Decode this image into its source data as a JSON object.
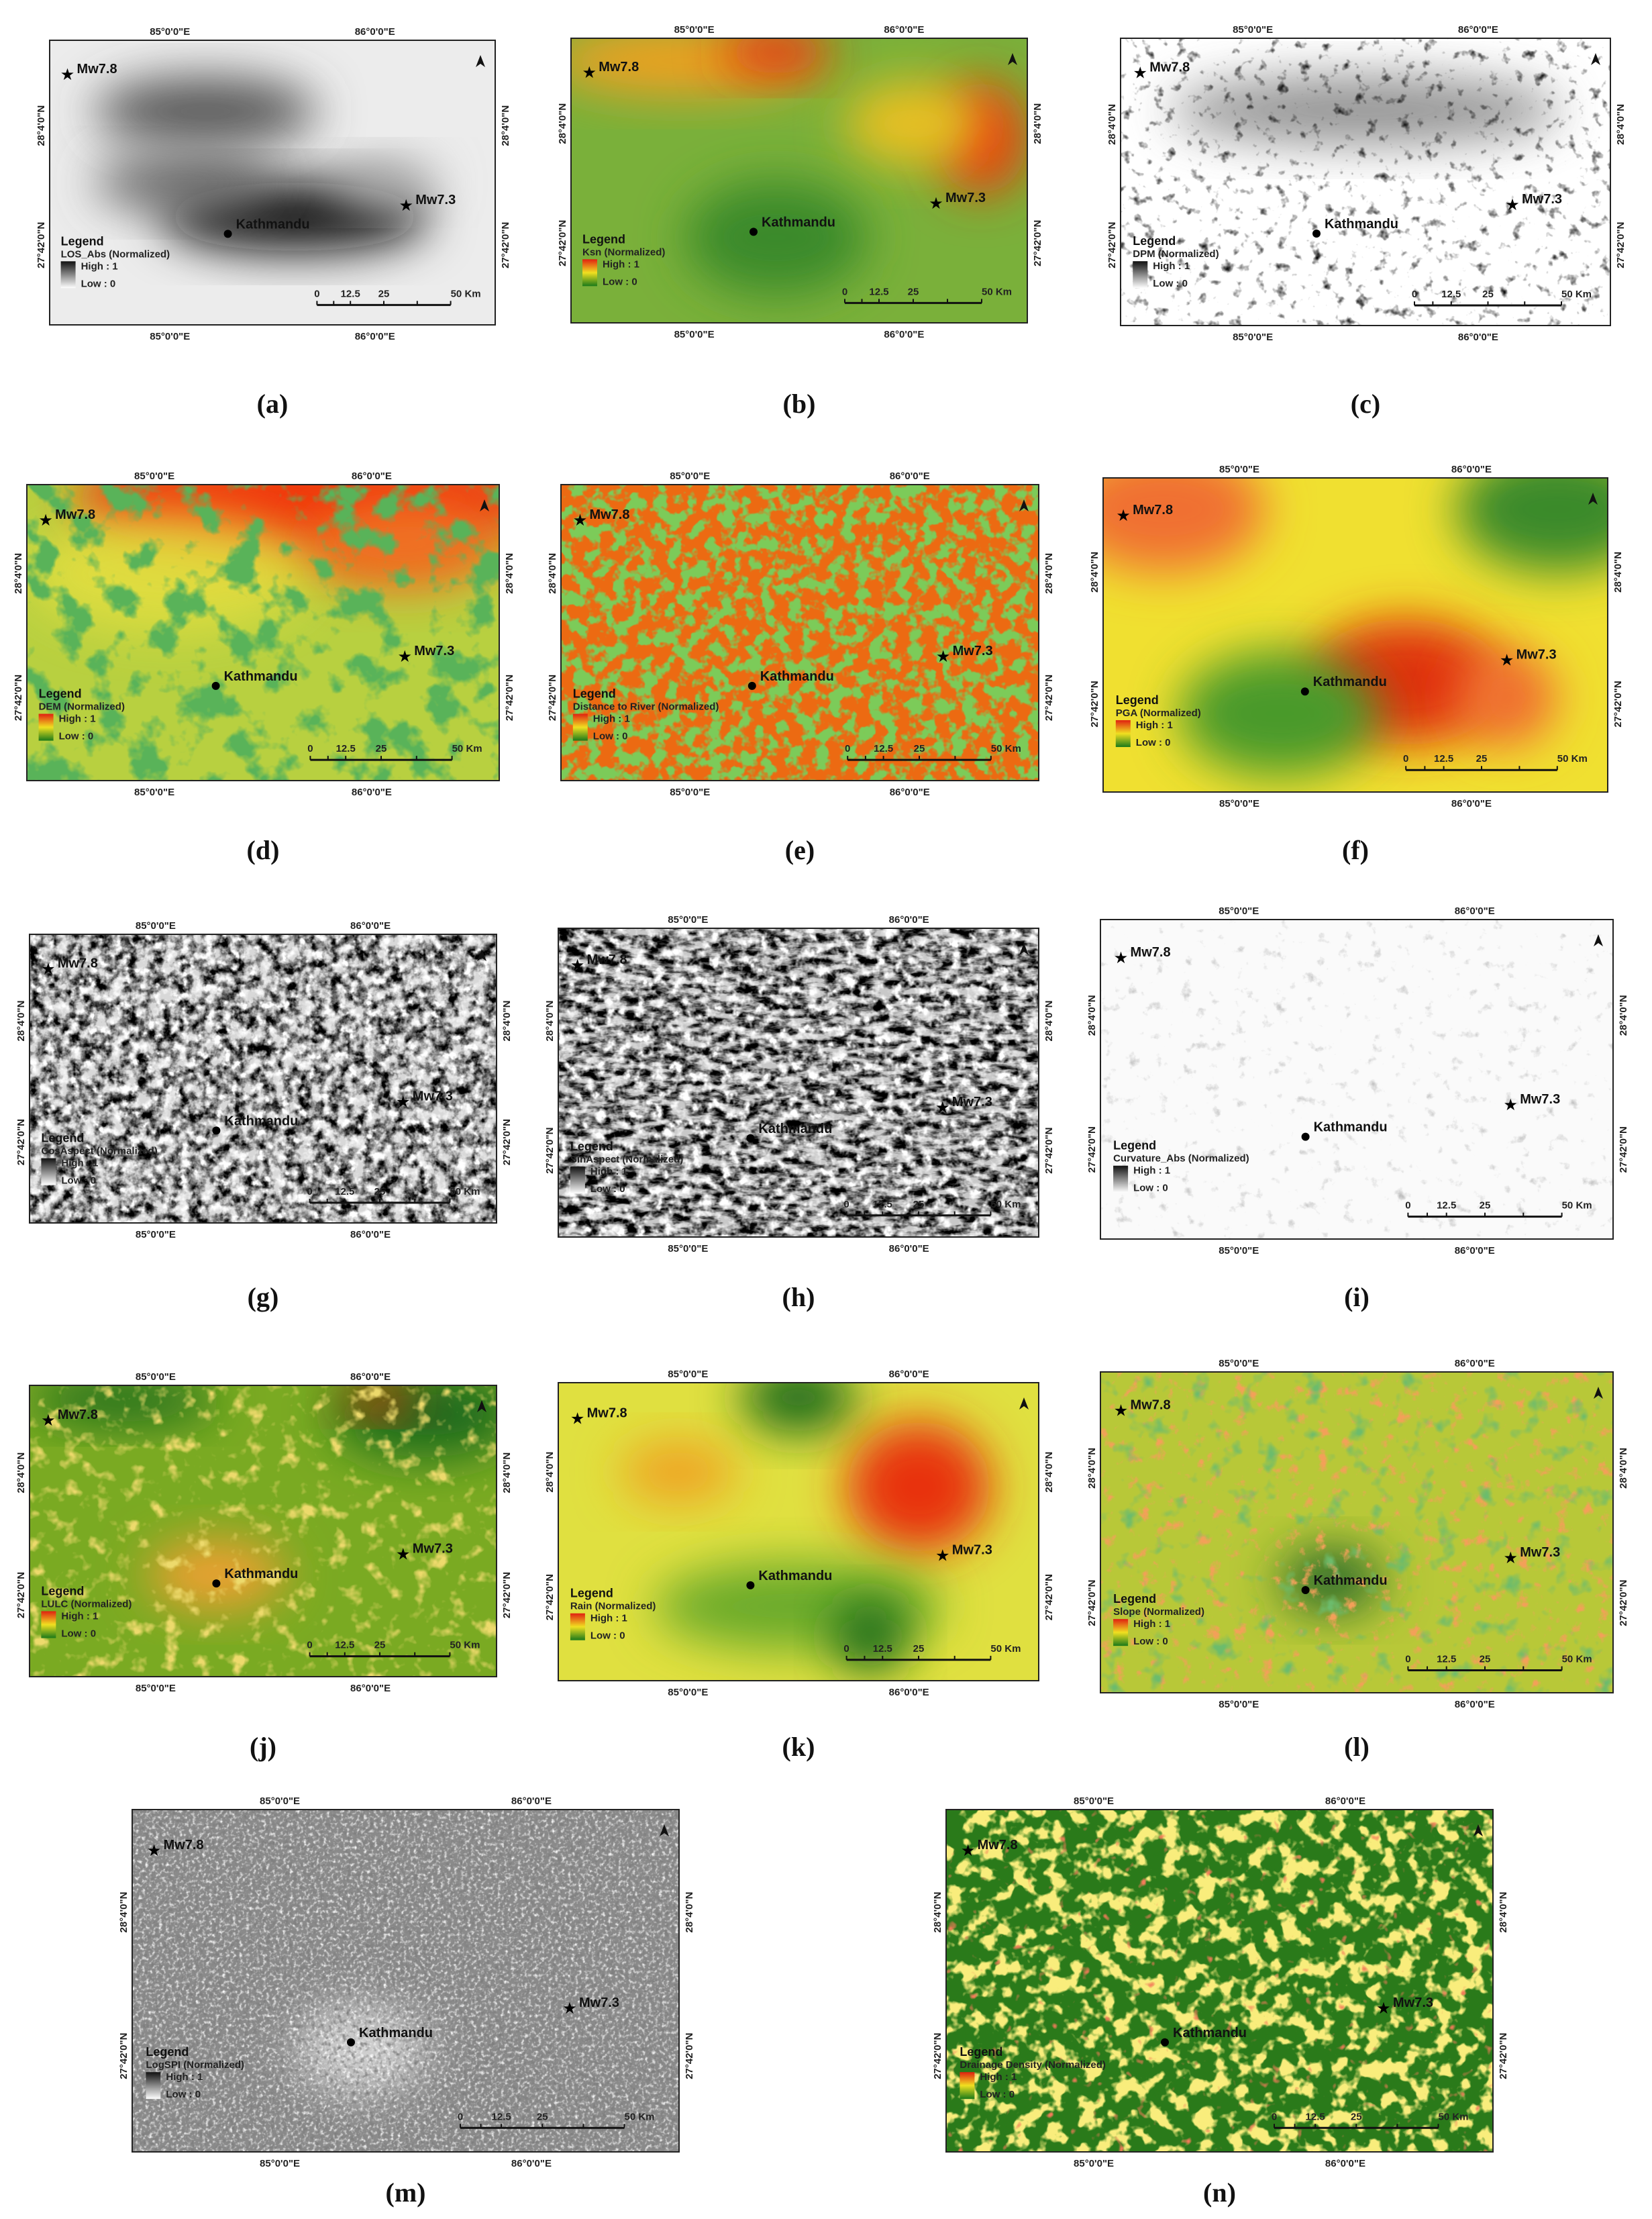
{
  "map_labels": {
    "longitude": [
      "85°0'0\"E",
      "86°0'0\"E"
    ],
    "latitude": [
      "28°4'0\"N",
      "27°42'0\"N"
    ],
    "events": [
      "Mw7.8",
      "Mw7.3"
    ],
    "city": "Kathmandu",
    "legend": "Legend",
    "high": "High : 1",
    "low": "Low : 0",
    "scale": [
      "0",
      "12.5",
      "25",
      "50 Km"
    ]
  },
  "panels": [
    {
      "label": "(a)",
      "layer": "LOS_Abs (Normalized)"
    },
    {
      "label": "(b)",
      "layer": "Ksn (Normalized)"
    },
    {
      "label": "(c)",
      "layer": "DPM (Normalized)"
    },
    {
      "label": "(d)",
      "layer": "DEM (Normalized)"
    },
    {
      "label": "(e)",
      "layer": "Distance to River (Normalized)"
    },
    {
      "label": "(f)",
      "layer": "PGA (Normalized)"
    },
    {
      "label": "(g)",
      "layer": "CosAspect (Normalized)"
    },
    {
      "label": "(h)",
      "layer": "SinAspect (Normalized)"
    },
    {
      "label": "(i)",
      "layer": "Curvature_Abs (Normalized)"
    },
    {
      "label": "(j)",
      "layer": "LULC (Normalized)"
    },
    {
      "label": "(k)",
      "layer": "Rain (Normalized)"
    },
    {
      "label": "(l)",
      "layer": "Slope (Normalized)"
    },
    {
      "label": "(m)",
      "layer": "LogSPI (Normalized)"
    },
    {
      "label": "(n)",
      "layer": "Drainage Density (Normalized)"
    }
  ]
}
